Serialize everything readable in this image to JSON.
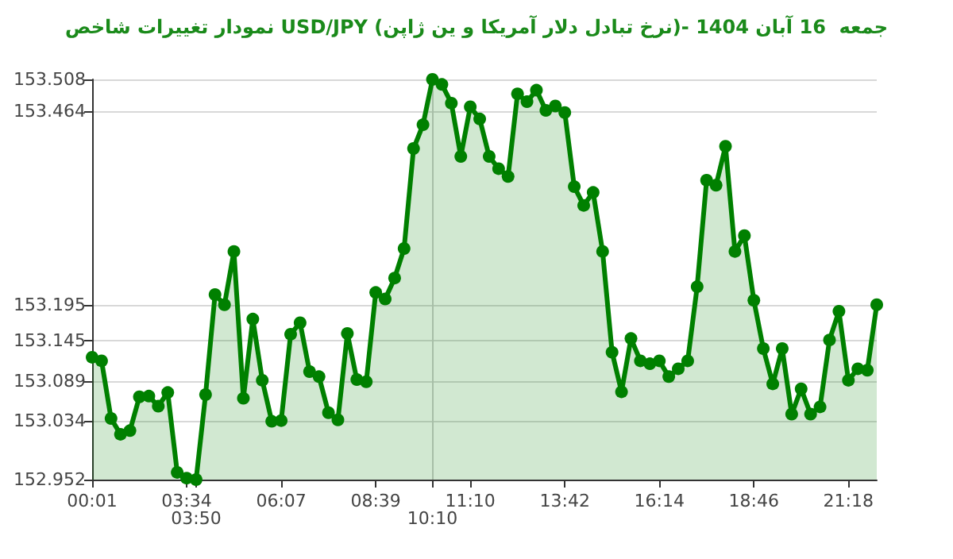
{
  "chart_data": {
    "type": "area",
    "title": "نمودار تغییرات شاخص USD/JPY (نرخ تبادل دلار آمریکا و ین ژاپن)- جمعه  16 آبان 1404",
    "categories": [
      "00:01",
      null,
      null,
      null,
      null,
      null,
      null,
      null,
      null,
      null,
      "03:34",
      "03:50",
      null,
      null,
      null,
      null,
      null,
      null,
      null,
      null,
      "06:07",
      null,
      null,
      null,
      null,
      null,
      null,
      null,
      null,
      null,
      "08:39",
      null,
      null,
      null,
      null,
      null,
      "10:10",
      null,
      null,
      null,
      "11:10",
      null,
      null,
      null,
      null,
      null,
      null,
      null,
      null,
      null,
      "13:42",
      null,
      null,
      null,
      null,
      null,
      null,
      null,
      null,
      null,
      "16:14",
      null,
      null,
      null,
      null,
      null,
      null,
      null,
      null,
      null,
      "18:46",
      null,
      null,
      null,
      null,
      null,
      null,
      null,
      null,
      null,
      "21:18",
      null,
      null,
      null
    ],
    "series": [
      {
        "color": "#008000",
        "values": [
          153.122,
          153.117,
          153.037,
          153.015,
          153.02,
          153.067,
          153.068,
          153.054,
          153.073,
          152.962,
          152.954,
          152.952,
          153.07,
          153.209,
          153.195,
          153.269,
          153.065,
          153.175,
          153.09,
          153.033,
          153.034,
          153.154,
          153.17,
          153.102,
          153.095,
          153.045,
          153.035,
          153.155,
          153.091,
          153.088,
          153.212,
          153.203,
          153.232,
          153.273,
          153.412,
          153.445,
          153.508,
          153.501,
          153.475,
          153.401,
          153.47,
          153.453,
          153.401,
          153.384,
          153.373,
          153.488,
          153.477,
          153.493,
          153.465,
          153.471,
          153.462,
          153.359,
          153.333,
          153.351,
          153.269,
          153.129,
          153.074,
          153.148,
          153.117,
          153.113,
          153.117,
          153.095,
          153.106,
          153.117,
          153.22,
          153.368,
          153.361,
          153.415,
          153.269,
          153.291,
          153.201,
          153.134,
          153.085,
          153.134,
          153.043,
          153.078,
          153.043,
          153.053,
          153.146,
          153.186,
          153.09,
          153.106,
          153.104,
          153.195
        ]
      }
    ],
    "ylim": [
      152.952,
      153.508
    ],
    "yticks": [
      152.952,
      153.034,
      153.089,
      153.145,
      153.195,
      153.464,
      153.508
    ],
    "ref_lines": [
      {
        "axis": "x",
        "value": "10:10",
        "color": "#cccccc"
      }
    ],
    "grid": "y",
    "marker": "circle",
    "line_style": "solid"
  }
}
